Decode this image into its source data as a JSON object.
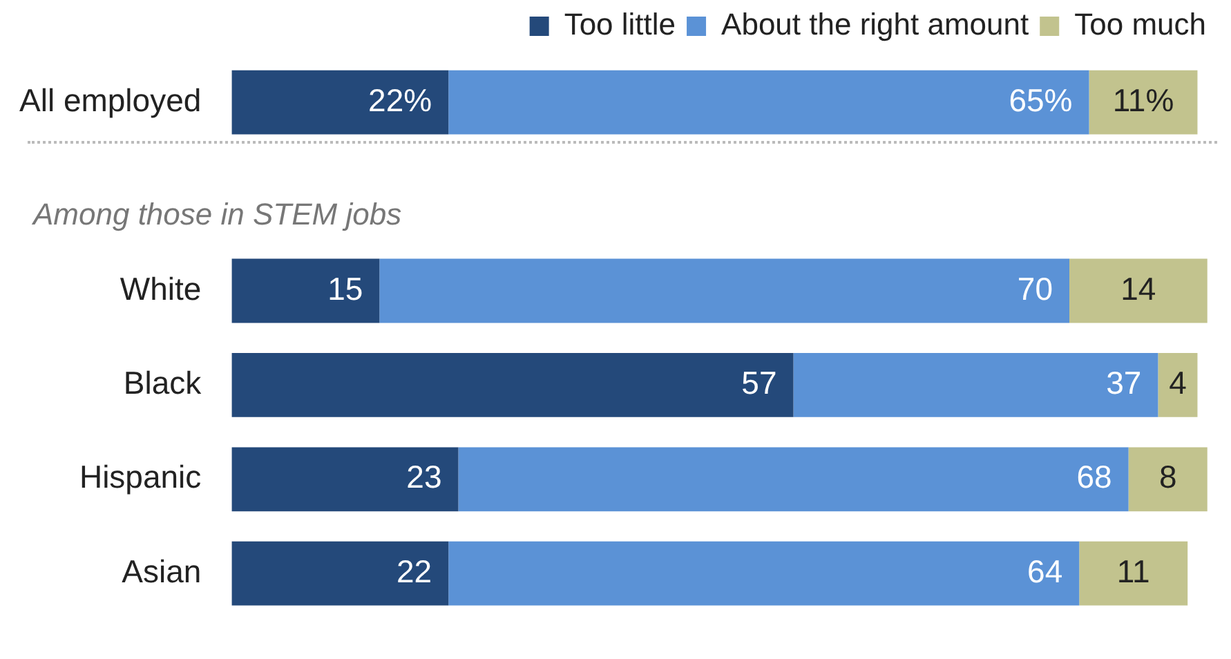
{
  "chart_data": {
    "type": "bar",
    "orientation": "horizontal",
    "stacked": true,
    "categories": [
      "All employed",
      null,
      "White",
      "Black",
      "Hispanic",
      "Asian"
    ],
    "series": [
      {
        "name": "Too little",
        "color": "#24497a",
        "values": [
          22,
          null,
          15,
          57,
          23,
          22
        ],
        "value_labels": [
          "22%",
          null,
          "15",
          "57",
          "23",
          "22"
        ]
      },
      {
        "name": "About the right amount",
        "color": "#5b92d6",
        "values": [
          65,
          null,
          70,
          37,
          68,
          64
        ],
        "value_labels": [
          "65%",
          null,
          "70",
          "37",
          "68",
          "64"
        ]
      },
      {
        "name": "Too much",
        "color": "#c2c38e",
        "values": [
          11,
          null,
          14,
          4,
          8,
          11
        ],
        "value_labels": [
          "11%",
          null,
          "14",
          "4",
          "8",
          "11"
        ]
      }
    ],
    "xlim": [
      0,
      100
    ],
    "tick_labels": "y",
    "legend": "top right",
    "annotations": [
      "Among those in STEM jobs"
    ]
  }
}
